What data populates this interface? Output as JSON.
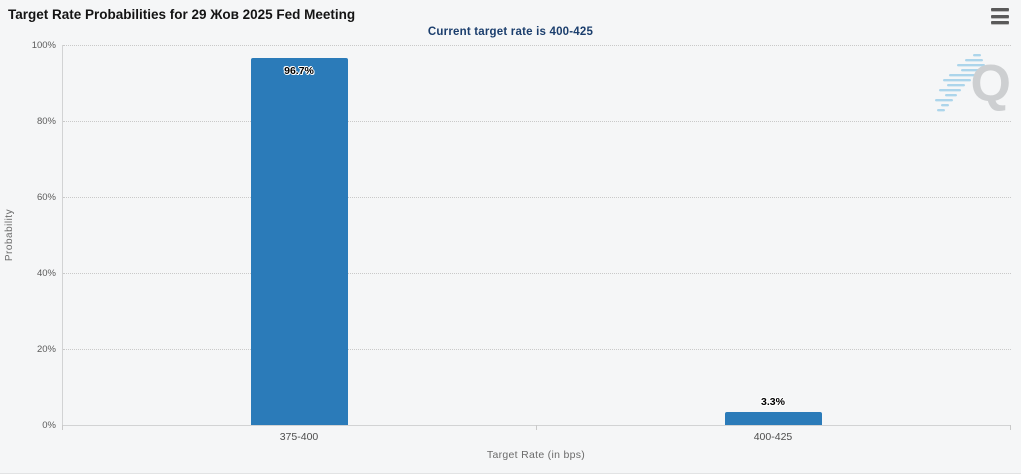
{
  "header": {
    "title": "Target Rate Probabilities for 29 Жов 2025 Fed Meeting",
    "subtitle": "Current target rate is 400-425"
  },
  "watermark": {
    "letter": "Q"
  },
  "colors": {
    "bar": "#2b7bb9",
    "subtitle_text": "#1b3e6d",
    "title_text": "#141414",
    "background": "#f5f6f7",
    "watermark_dash": "#a5d2ea",
    "watermark_letter": "#c9cbcd"
  },
  "chart_data": {
    "type": "bar",
    "title": "Target Rate Probabilities for 29 Жов 2025 Fed Meeting",
    "subtitle": "Current target rate is 400-425",
    "categories": [
      "375-400",
      "400-425"
    ],
    "values": [
      96.7,
      3.3
    ],
    "data_labels": [
      "96.7%",
      "3.3%"
    ],
    "xlabel": "Target Rate (in bps)",
    "ylabel": "Probability",
    "ylim": [
      0,
      100
    ],
    "ytick_values": [
      0,
      20,
      40,
      60,
      80,
      100
    ],
    "ytick_labels": [
      "0%",
      "20%",
      "40%",
      "60%",
      "80%",
      "100%"
    ],
    "grid": "horizontal dotted",
    "legend": "none",
    "bar_color": "#2b7bb9"
  }
}
